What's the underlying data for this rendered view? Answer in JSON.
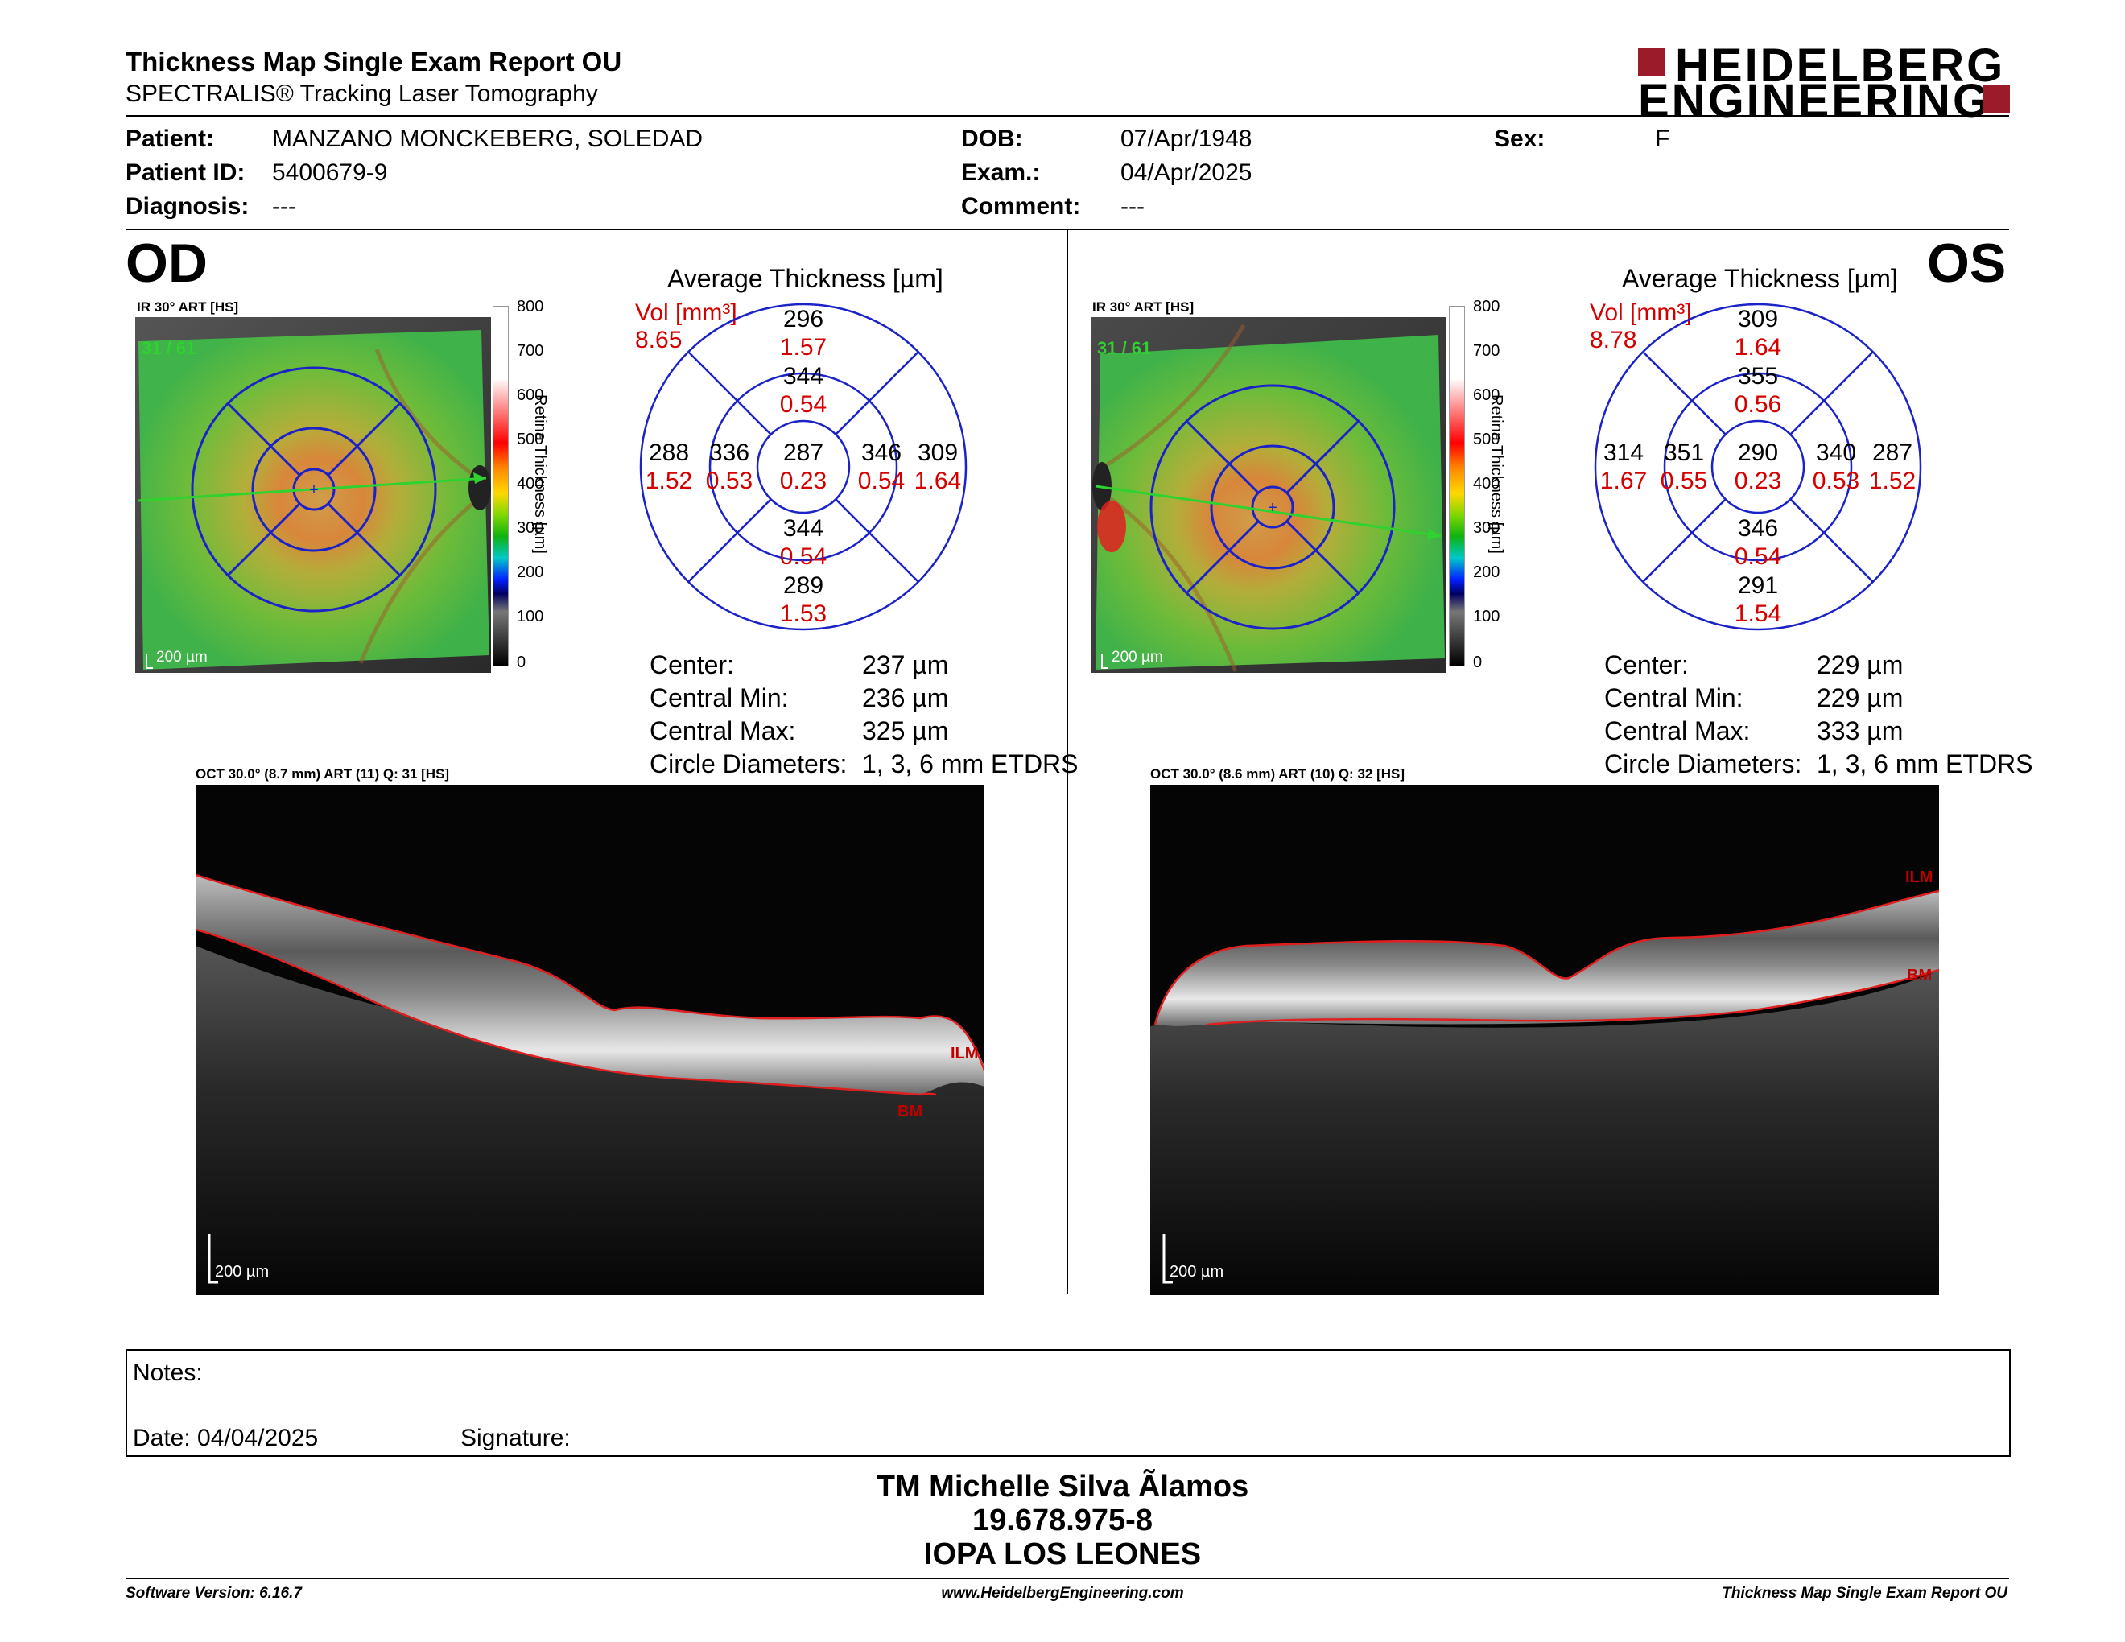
{
  "header": {
    "report_title": "Thickness Map Single Exam Report OU",
    "subtitle": "SPECTRALIS® Tracking Laser Tomography",
    "logo_line1": "HEIDELBERG",
    "logo_line2": "ENGINEERING"
  },
  "patient": {
    "patient_label": "Patient:",
    "patient_value": "MANZANO MONCKEBERG, SOLEDAD",
    "id_label": "Patient ID:",
    "id_value": "5400679-9",
    "diagnosis_label": "Diagnosis:",
    "diagnosis_value": "---",
    "dob_label": "DOB:",
    "dob_value": "07/Apr/1948",
    "exam_label": "Exam.:",
    "exam_value": "04/Apr/2025",
    "comment_label": "Comment:",
    "comment_value": "---",
    "sex_label": "Sex:",
    "sex_value": "F"
  },
  "od": {
    "eye": "OD",
    "ir_caption": "IR 30° ART [HS]",
    "frame": "31 / 61",
    "scale": "200 µm",
    "colorbar_ticks": [
      "800",
      "700",
      "600",
      "500",
      "400",
      "300",
      "200",
      "100",
      "0"
    ],
    "colorbar_label": "Retina Thickness [µm]",
    "avg_title": "Average Thickness [µm]",
    "vol_label": "Vol [mm³]",
    "vol_value": "8.65",
    "grid": {
      "center_t": "287",
      "center_v": "0.23",
      "inner_sup_t": "344",
      "inner_sup_v": "0.54",
      "inner_inf_t": "344",
      "inner_inf_v": "0.54",
      "inner_left_t": "336",
      "inner_left_v": "0.53",
      "inner_right_t": "346",
      "inner_right_v": "0.54",
      "outer_sup_t": "296",
      "outer_sup_v": "1.57",
      "outer_inf_t": "289",
      "outer_inf_v": "1.53",
      "outer_left_t": "288",
      "outer_left_v": "1.52",
      "outer_right_t": "309",
      "outer_right_v": "1.64"
    },
    "stats": [
      {
        "label": "Center:",
        "value": "237 µm"
      },
      {
        "label": "Central Min:",
        "value": "236 µm"
      },
      {
        "label": "Central Max:",
        "value": "325 µm"
      },
      {
        "label": "Circle Diameters:",
        "value": "1, 3, 6 mm ETDRS"
      }
    ],
    "oct_caption": "OCT 30.0° (8.7 mm) ART (11) Q: 31 [HS]",
    "ilm": "ILM",
    "bm": "BM",
    "oct_scale": "200 µm"
  },
  "os": {
    "eye": "OS",
    "ir_caption": "IR 30° ART [HS]",
    "frame": "31 / 61",
    "scale": "200 µm",
    "colorbar_ticks": [
      "800",
      "700",
      "600",
      "500",
      "400",
      "300",
      "200",
      "100",
      "0"
    ],
    "colorbar_label": "Retina Thickness [µm]",
    "avg_title": "Average Thickness [µm]",
    "vol_label": "Vol [mm³]",
    "vol_value": "8.78",
    "grid": {
      "center_t": "290",
      "center_v": "0.23",
      "inner_sup_t": "355",
      "inner_sup_v": "0.56",
      "inner_inf_t": "346",
      "inner_inf_v": "0.54",
      "inner_left_t": "351",
      "inner_left_v": "0.55",
      "inner_right_t": "340",
      "inner_right_v": "0.53",
      "outer_sup_t": "309",
      "outer_sup_v": "1.64",
      "outer_inf_t": "291",
      "outer_inf_v": "1.54",
      "outer_left_t": "314",
      "outer_left_v": "1.67",
      "outer_right_t": "287",
      "outer_right_v": "1.52"
    },
    "stats": [
      {
        "label": "Center:",
        "value": "229 µm"
      },
      {
        "label": "Central Min:",
        "value": "229 µm"
      },
      {
        "label": "Central Max:",
        "value": "333 µm"
      },
      {
        "label": "Circle Diameters:",
        "value": "1, 3, 6 mm ETDRS"
      }
    ],
    "oct_caption": "OCT 30.0° (8.6 mm) ART (10) Q: 32 [HS]",
    "ilm": "ILM",
    "bm": "BM",
    "oct_scale": "200 µm"
  },
  "notes": {
    "notes_label": "Notes:",
    "date_label": "Date: 04/04/2025",
    "signature_label": "Signature:"
  },
  "signature": {
    "name": "TM Michelle Silva Ãlamos",
    "rut": "19.678.975-8",
    "clinic": "IOPA LOS LEONES"
  },
  "footer": {
    "software": "Software Version: 6.16.7",
    "website": "www.HeidelbergEngineering.com",
    "report": "Thickness Map Single Exam Report OU"
  },
  "colors": {
    "grid_blue": "#1a22c8",
    "volume_red": "#d40000",
    "logo_red": "#9b1b2a",
    "overlay_green": "#2fd22f"
  }
}
